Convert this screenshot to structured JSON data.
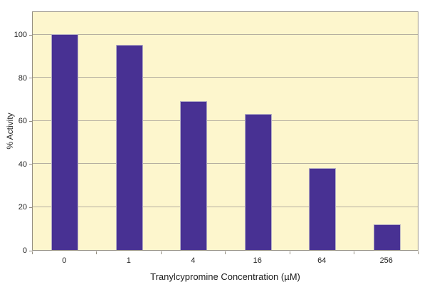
{
  "chart_data": {
    "type": "bar",
    "categories": [
      "0",
      "1",
      "4",
      "16",
      "64",
      "256"
    ],
    "values": [
      100,
      95,
      69,
      63,
      38,
      12
    ],
    "title": "",
    "xlabel": "Tranylcypromine Concentration (µM)",
    "ylabel": "% Activity",
    "ylim": [
      0,
      111
    ],
    "yticks": [
      0,
      20,
      40,
      60,
      80,
      100
    ],
    "grid": true,
    "legend": "none",
    "colors": {
      "bar_fill": "#483193",
      "bar_border": "#b4adc4",
      "plot_background": "#fdf6cd",
      "gridline": "#b5afa0",
      "axis_border": "#938d80",
      "text": "#262626"
    }
  }
}
